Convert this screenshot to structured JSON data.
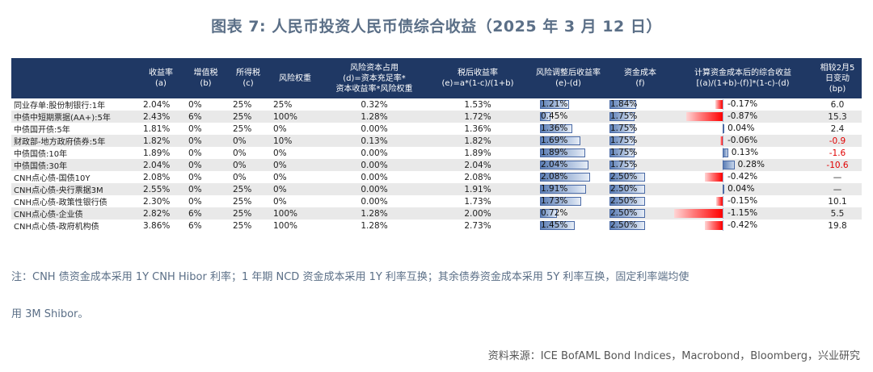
{
  "title": "图表 7:   人民币投资人民币债综合收益（2025 年 3 月 12 日）",
  "headers": {
    "name": "",
    "yield": [
      "收益率",
      "(a)"
    ],
    "vat": [
      "增值税",
      "(b)"
    ],
    "income_tax": [
      "所得税",
      "(c)"
    ],
    "risk_weight": [
      "风险权重",
      ""
    ],
    "capital_cost": [
      "风险资本占用",
      "(d)=资本充足率*",
      "资本收益率*风险权重"
    ],
    "after_tax": [
      "税后收益率",
      "(e)=a*(1-c)/(1+b)"
    ],
    "risk_adj": [
      "风险调整后收益率",
      "(e)-(d)"
    ],
    "funding_cost": [
      "资金成本",
      "(f)"
    ],
    "net": [
      "计算资金成本后的综合收益",
      "[(a)/(1+b)-(f)]*(1-c)-(d)"
    ],
    "change": [
      "相较2月5",
      "日变动",
      "(bp)"
    ]
  },
  "rows": [
    {
      "name": "同业存单:股份制银行:1年",
      "yield": "2.04%",
      "vat": "0%",
      "tax": "25%",
      "rw": "25%",
      "cap": "0.32%",
      "after": "1.53%",
      "adj": "1.21%",
      "adj_v": 1.21,
      "fund": "1.84%",
      "fund_v": 1.84,
      "net": "-0.17%",
      "net_v": -0.17,
      "chg": "6.0",
      "chg_neg": false
    },
    {
      "name": "中债中短期票据(AA+):5年",
      "yield": "2.43%",
      "vat": "6%",
      "tax": "25%",
      "rw": "100%",
      "cap": "1.28%",
      "after": "1.72%",
      "adj": "0.45%",
      "adj_v": 0.45,
      "fund": "1.75%",
      "fund_v": 1.75,
      "net": "-0.87%",
      "net_v": -0.87,
      "chg": "15.3",
      "chg_neg": false
    },
    {
      "name": "中债国开债:5年",
      "yield": "1.81%",
      "vat": "0%",
      "tax": "25%",
      "rw": "0%",
      "cap": "0.00%",
      "after": "1.36%",
      "adj": "1.36%",
      "adj_v": 1.36,
      "fund": "1.75%",
      "fund_v": 1.75,
      "net": "0.04%",
      "net_v": 0.04,
      "chg": "2.4",
      "chg_neg": false
    },
    {
      "name": "财政部-地方政府债券:5年",
      "yield": "1.82%",
      "vat": "0%",
      "tax": "0%",
      "rw": "10%",
      "cap": "0.13%",
      "after": "1.82%",
      "adj": "1.69%",
      "adj_v": 1.69,
      "fund": "1.75%",
      "fund_v": 1.75,
      "net": "-0.06%",
      "net_v": -0.06,
      "chg": "-0.9",
      "chg_neg": true
    },
    {
      "name": "中债国债:10年",
      "yield": "1.89%",
      "vat": "0%",
      "tax": "0%",
      "rw": "0%",
      "cap": "0.00%",
      "after": "1.89%",
      "adj": "1.89%",
      "adj_v": 1.89,
      "fund": "1.75%",
      "fund_v": 1.75,
      "net": "0.13%",
      "net_v": 0.13,
      "chg": "-1.6",
      "chg_neg": true
    },
    {
      "name": "中债国债:30年",
      "yield": "2.04%",
      "vat": "0%",
      "tax": "0%",
      "rw": "0%",
      "cap": "0.00%",
      "after": "2.04%",
      "adj": "2.04%",
      "adj_v": 2.04,
      "fund": "1.75%",
      "fund_v": 1.75,
      "net": "0.28%",
      "net_v": 0.28,
      "chg": "-10.6",
      "chg_neg": true
    },
    {
      "name": "CNH点心债-国债10Y",
      "yield": "2.08%",
      "vat": "0%",
      "tax": "0%",
      "rw": "0%",
      "cap": "0.00%",
      "after": "2.08%",
      "adj": "2.08%",
      "adj_v": 2.08,
      "fund": "2.50%",
      "fund_v": 2.5,
      "net": "-0.42%",
      "net_v": -0.42,
      "chg": "—",
      "chg_neg": false
    },
    {
      "name": "CNH点心债-央行票据3M",
      "yield": "2.55%",
      "vat": "0%",
      "tax": "25%",
      "rw": "0%",
      "cap": "0.00%",
      "after": "1.91%",
      "adj": "1.91%",
      "adj_v": 1.91,
      "fund": "2.50%",
      "fund_v": 2.5,
      "net": "0.04%",
      "net_v": 0.04,
      "chg": "—",
      "chg_neg": false
    },
    {
      "name": "CNH点心债-政策性银行债",
      "yield": "2.30%",
      "vat": "0%",
      "tax": "25%",
      "rw": "0%",
      "cap": "0.00%",
      "after": "1.73%",
      "adj": "1.73%",
      "adj_v": 1.73,
      "fund": "2.50%",
      "fund_v": 2.5,
      "net": "-0.15%",
      "net_v": -0.15,
      "chg": "10.1",
      "chg_neg": false
    },
    {
      "name": "CNH点心债-企业债",
      "yield": "2.82%",
      "vat": "6%",
      "tax": "25%",
      "rw": "100%",
      "cap": "1.28%",
      "after": "2.00%",
      "adj": "0.72%",
      "adj_v": 0.72,
      "fund": "2.50%",
      "fund_v": 2.5,
      "net": "-1.15%",
      "net_v": -1.15,
      "chg": "5.5",
      "chg_neg": false
    },
    {
      "name": "CNH点心债-政府机构债",
      "yield": "3.86%",
      "vat": "6%",
      "tax": "25%",
      "rw": "100%",
      "cap": "1.28%",
      "after": "2.73%",
      "adj": "1.45%",
      "adj_v": 1.45,
      "fund": "2.50%",
      "fund_v": 2.5,
      "net": "-0.42%",
      "net_v": -0.42,
      "chg": "19.8",
      "chg_neg": false
    }
  ],
  "bar_scale_max": 2.5,
  "net_scale_max": 1.15,
  "note_line1": "注：CNH 债资金成本采用 1Y CNH Hibor 利率；1 年期 NCD 资金成本采用 1Y 利率互换；其余债券资金成本采用 5Y 利率互换，固定利率端均使",
  "note_line2": "用 3M Shibor。",
  "source": "资料来源：ICE BofAML Bond Indices，Macrobond，Bloomberg，兴业研究",
  "colors": {
    "header_bg": "#1f3864",
    "bar_blue": "#5d7fb6",
    "neg_red": "#ff0000",
    "title": "#5b6f87"
  }
}
